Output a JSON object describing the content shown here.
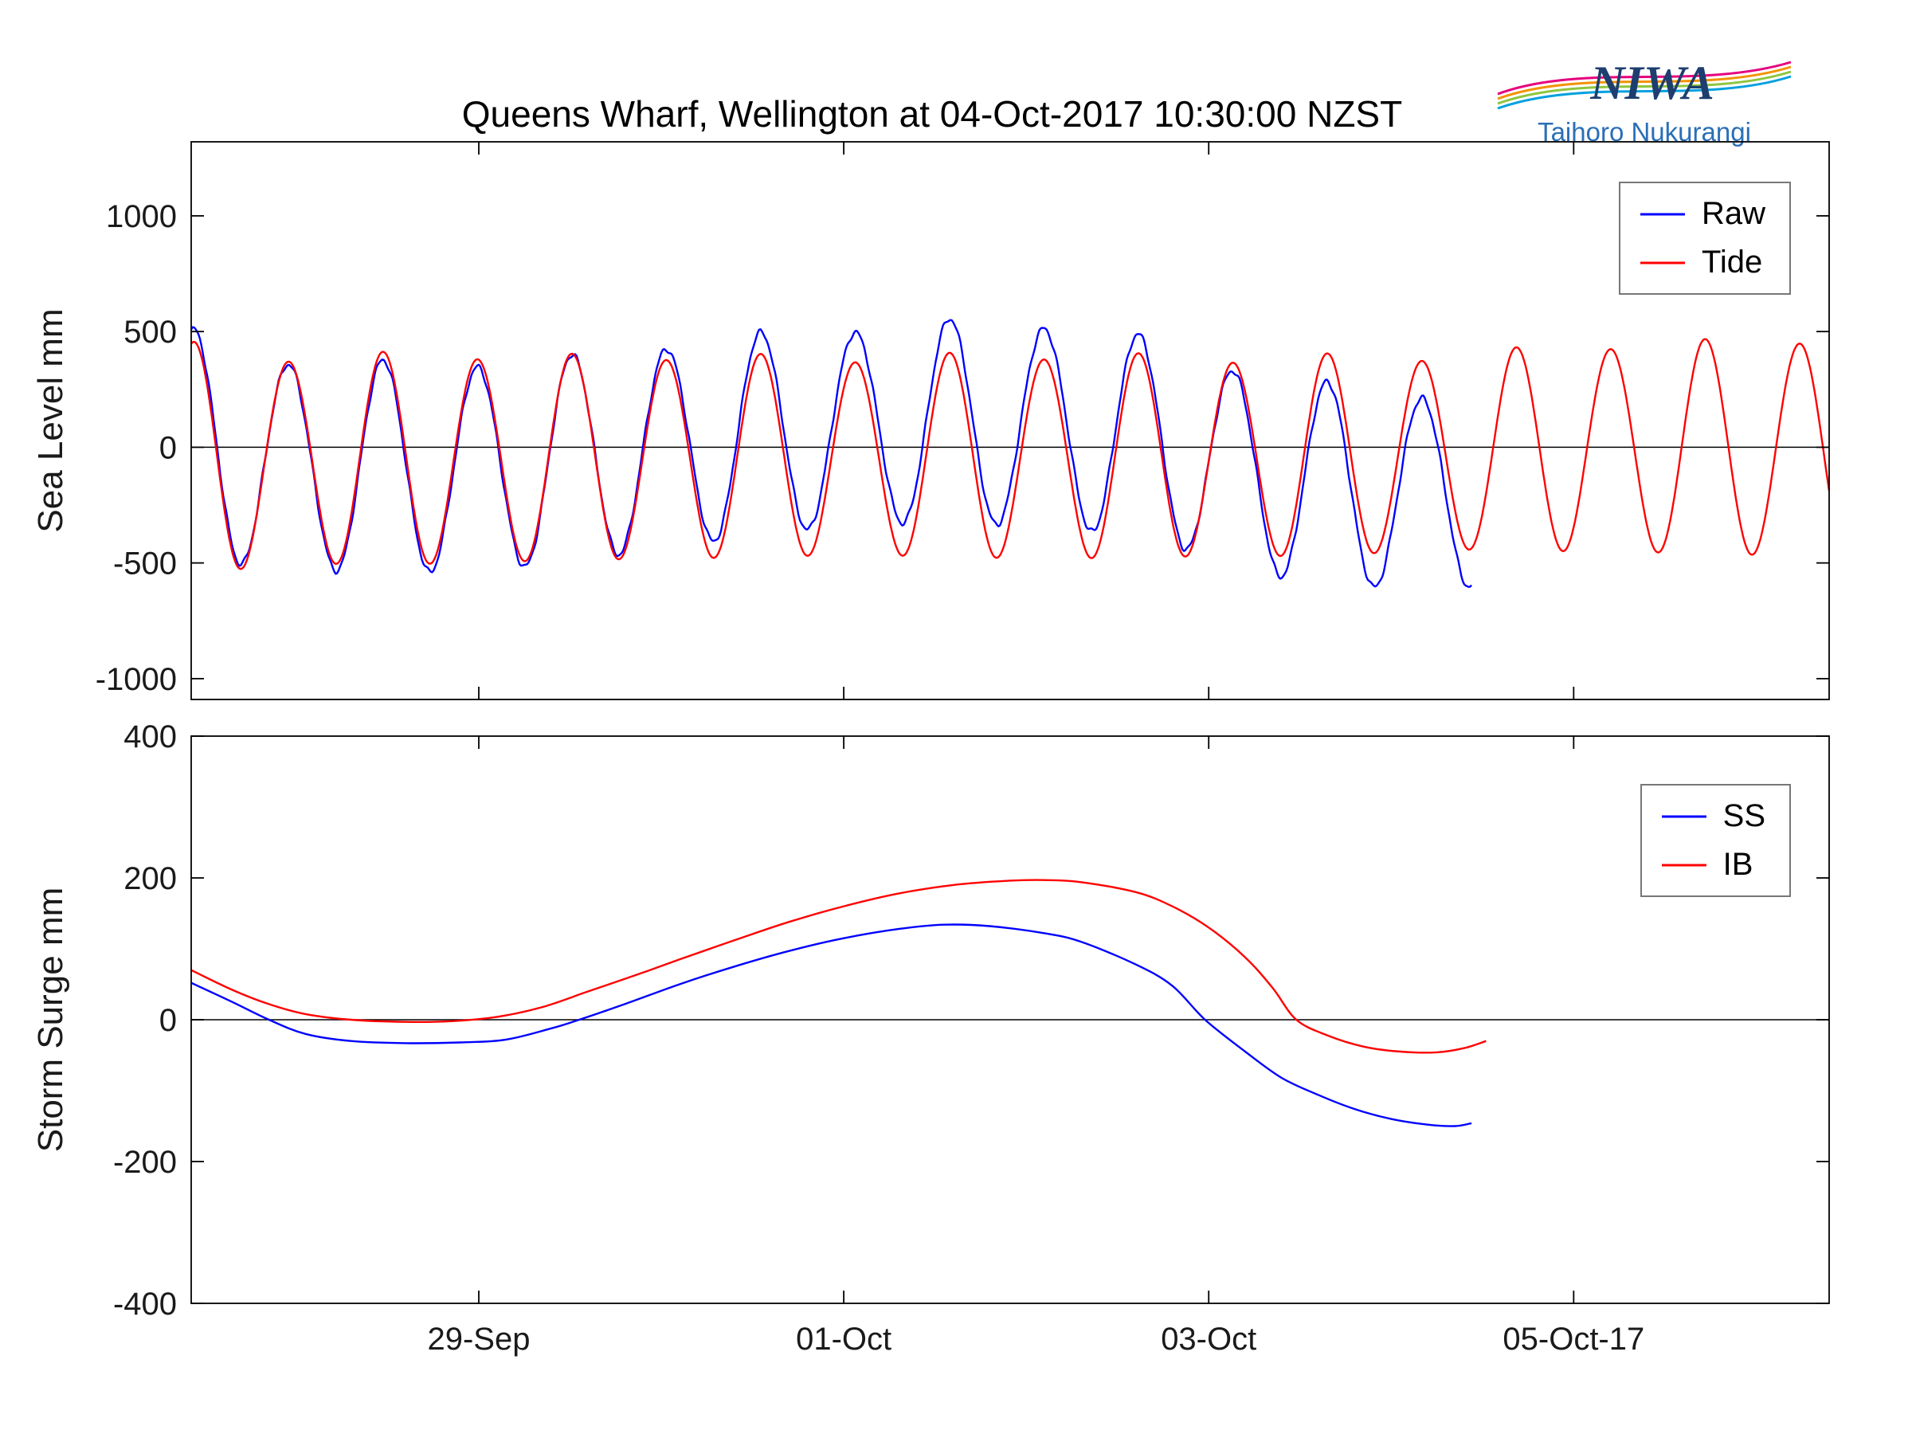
{
  "header": {
    "title": "Queens Wharf, Wellington at 04-Oct-2017 10:30:00 NZST",
    "logo": {
      "name": "NIWA",
      "subtitle": "Taihoro Nukurangi",
      "name_color": "#1d3e6e",
      "subtitle_color": "#2a6fb7",
      "swoosh_colors": [
        "#e6007e",
        "#f39200",
        "#8dc63f",
        "#00a0df"
      ]
    }
  },
  "chart_data": [
    {
      "type": "line",
      "panel": "sea-level",
      "title": "Queens Wharf, Wellington at 04-Oct-2017 10:30:00 NZST",
      "ylabel": "Sea Level mm",
      "x_unit": "days since 29-Sep-2017 00:00 NZST",
      "xlim": [
        -1.576,
        7.4
      ],
      "ylim": [
        -1090,
        1320
      ],
      "grid": false,
      "zero_line": true,
      "legend_position": "top-right",
      "yticks": [
        {
          "v": 1000,
          "label": "1000"
        },
        {
          "v": 500,
          "label": "500"
        },
        {
          "v": 0,
          "label": "0"
        },
        {
          "v": -500,
          "label": "-500"
        },
        {
          "v": -1000,
          "label": "-1000"
        }
      ],
      "xticks": [
        {
          "v": 0,
          "label": ""
        },
        {
          "v": 2,
          "label": ""
        },
        {
          "v": 4,
          "label": ""
        },
        {
          "v": 6,
          "label": ""
        }
      ],
      "series": [
        {
          "name": "Raw",
          "color": "#0000ff",
          "model": "tide_plus_surge",
          "period_days": 0.5175,
          "peak_time": -1.56,
          "inequality": 0.04,
          "t_end": 5.44,
          "surge_scale": 1.1,
          "noise_amp": 9,
          "offset_points": [
            [
              -1.6,
              -60
            ],
            [
              -0.5,
              -55
            ],
            [
              1,
              -45
            ],
            [
              2.5,
              -40
            ],
            [
              4,
              -45
            ],
            [
              5,
              -35
            ],
            [
              6,
              -5
            ],
            [
              7.4,
              -5
            ]
          ],
          "envelope": [
            [
              -1.6,
              500
            ],
            [
              -1.1,
              445
            ],
            [
              -0.5,
              450
            ],
            [
              0,
              450
            ],
            [
              0.5,
              435
            ],
            [
              1,
              440
            ],
            [
              1.5,
              430
            ],
            [
              2,
              425
            ],
            [
              2.5,
              430
            ],
            [
              3,
              440
            ],
            [
              3.5,
              435
            ],
            [
              4,
              425
            ],
            [
              4.5,
              430
            ],
            [
              5,
              420
            ],
            [
              5.5,
              420
            ],
            [
              6,
              445
            ],
            [
              6.5,
              450
            ],
            [
              7,
              460
            ],
            [
              7.4,
              480
            ]
          ]
        },
        {
          "name": "Tide",
          "color": "#ff0000",
          "model": "tide",
          "period_days": 0.5175,
          "peak_time": -1.56,
          "inequality": 0.04,
          "offset_points": [
            [
              -1.6,
              -60
            ],
            [
              -0.5,
              -55
            ],
            [
              1,
              -45
            ],
            [
              2.5,
              -40
            ],
            [
              4,
              -45
            ],
            [
              5,
              -35
            ],
            [
              6,
              -5
            ],
            [
              7.4,
              -5
            ]
          ],
          "envelope": [
            [
              -1.6,
              500
            ],
            [
              -1.1,
              445
            ],
            [
              -0.5,
              450
            ],
            [
              0,
              450
            ],
            [
              0.5,
              435
            ],
            [
              1,
              440
            ],
            [
              1.5,
              430
            ],
            [
              2,
              425
            ],
            [
              2.5,
              430
            ],
            [
              3,
              440
            ],
            [
              3.5,
              435
            ],
            [
              4,
              425
            ],
            [
              4.5,
              430
            ],
            [
              5,
              420
            ],
            [
              5.5,
              420
            ],
            [
              6,
              445
            ],
            [
              6.5,
              450
            ],
            [
              7,
              460
            ],
            [
              7.4,
              480
            ]
          ]
        }
      ]
    },
    {
      "type": "line",
      "panel": "storm-surge",
      "ylabel": "Storm Surge mm",
      "x_unit": "days since 29-Sep-2017 00:00 NZST",
      "xlim": [
        -1.576,
        7.4
      ],
      "ylim": [
        -400,
        400
      ],
      "grid": false,
      "zero_line": true,
      "legend_position": "top-right",
      "yticks": [
        {
          "v": 400,
          "label": "400"
        },
        {
          "v": 200,
          "label": "200"
        },
        {
          "v": 0,
          "label": "0"
        },
        {
          "v": -200,
          "label": "-200"
        },
        {
          "v": -400,
          "label": "-400"
        }
      ],
      "xticks": [
        {
          "v": 0,
          "label": "29-Sep"
        },
        {
          "v": 2,
          "label": "01-Oct"
        },
        {
          "v": 4,
          "label": "03-Oct"
        },
        {
          "v": 6,
          "label": "05-Oct-17"
        }
      ],
      "series": [
        {
          "name": "SS",
          "color": "#0000ff",
          "points": [
            [
              -1.576,
              52
            ],
            [
              -1.35,
              25
            ],
            [
              -1.15,
              0
            ],
            [
              -0.95,
              -20
            ],
            [
              -0.7,
              -30
            ],
            [
              -0.4,
              -33
            ],
            [
              -0.1,
              -32
            ],
            [
              0.15,
              -28
            ],
            [
              0.4,
              -12
            ],
            [
              0.55,
              0
            ],
            [
              0.8,
              22
            ],
            [
              1.1,
              50
            ],
            [
              1.4,
              75
            ],
            [
              1.7,
              97
            ],
            [
              2.0,
              115
            ],
            [
              2.3,
              128
            ],
            [
              2.55,
              134
            ],
            [
              2.8,
              132
            ],
            [
              3.1,
              122
            ],
            [
              3.3,
              110
            ],
            [
              3.6,
              78
            ],
            [
              3.8,
              48
            ],
            [
              3.98,
              0
            ],
            [
              4.2,
              -45
            ],
            [
              4.4,
              -82
            ],
            [
              4.6,
              -106
            ],
            [
              4.8,
              -126
            ],
            [
              5.0,
              -140
            ],
            [
              5.2,
              -148
            ],
            [
              5.35,
              -150
            ],
            [
              5.44,
              -146
            ]
          ]
        },
        {
          "name": "IB",
          "color": "#ff0000",
          "points": [
            [
              -1.576,
              70
            ],
            [
              -1.35,
              42
            ],
            [
              -1.15,
              22
            ],
            [
              -0.95,
              8
            ],
            [
              -0.7,
              0
            ],
            [
              -0.4,
              -3
            ],
            [
              -0.15,
              -2
            ],
            [
              0.1,
              4
            ],
            [
              0.35,
              18
            ],
            [
              0.6,
              40
            ],
            [
              0.85,
              62
            ],
            [
              1.1,
              85
            ],
            [
              1.4,
              112
            ],
            [
              1.7,
              138
            ],
            [
              2.0,
              160
            ],
            [
              2.3,
              178
            ],
            [
              2.6,
              190
            ],
            [
              2.9,
              196
            ],
            [
              3.1,
              197
            ],
            [
              3.3,
              194
            ],
            [
              3.6,
              180
            ],
            [
              3.8,
              160
            ],
            [
              4.0,
              130
            ],
            [
              4.2,
              88
            ],
            [
              4.35,
              45
            ],
            [
              4.48,
              0
            ],
            [
              4.65,
              -22
            ],
            [
              4.85,
              -38
            ],
            [
              5.05,
              -45
            ],
            [
              5.25,
              -46
            ],
            [
              5.4,
              -40
            ],
            [
              5.52,
              -30
            ]
          ]
        }
      ]
    }
  ]
}
